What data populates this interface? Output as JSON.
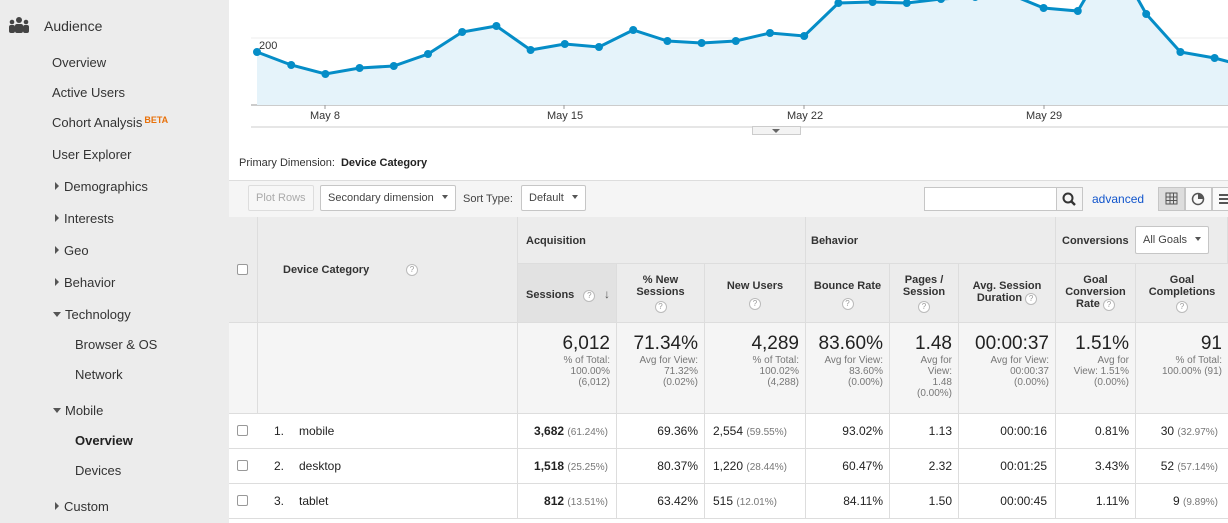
{
  "sidebar": {
    "title": "Audience",
    "icon": "audience-icon",
    "items": [
      {
        "label": "Overview"
      },
      {
        "label": "Active Users"
      },
      {
        "label": "Cohort Analysis",
        "badge": "BETA"
      },
      {
        "label": "User Explorer"
      },
      {
        "label": "Demographics"
      },
      {
        "label": "Interests"
      },
      {
        "label": "Geo"
      },
      {
        "label": "Behavior"
      },
      {
        "label": "Technology"
      },
      {
        "label": "Browser & OS"
      },
      {
        "label": "Network"
      },
      {
        "label": "Mobile"
      },
      {
        "label": "Overview"
      },
      {
        "label": "Devices"
      },
      {
        "label": "Custom"
      }
    ]
  },
  "chart_data": {
    "type": "area",
    "ytick": "200",
    "xticks": [
      "May 8",
      "May 15",
      "May 22",
      "May 29"
    ],
    "color": "#058dc7",
    "fill": "#e5f3fa",
    "values": [
      200,
      187,
      178,
      184,
      186,
      198,
      220,
      226,
      202,
      208,
      205,
      222,
      211,
      209,
      211,
      219,
      216,
      249,
      250,
      249,
      253,
      255,
      258,
      244,
      241,
      299,
      238,
      200,
      194,
      185
    ]
  },
  "primary_dimension": {
    "label": "Primary Dimension:",
    "value": "Device Category"
  },
  "toolbar": {
    "plot_rows": "Plot Rows",
    "secondary_dimension": "Secondary dimension",
    "sort_type_label": "Sort Type:",
    "sort_type_value": "Default",
    "search_placeholder": "",
    "advanced": "advanced"
  },
  "table": {
    "dimension_header": "Device Category",
    "groups": {
      "acquisition": "Acquisition",
      "behavior": "Behavior",
      "conversions": "Conversions",
      "goals_select": "All Goals"
    },
    "columns": [
      "Sessions",
      "% New Sessions",
      "New Users",
      "Bounce Rate",
      "Pages / Session",
      "Avg. Session Duration",
      "Goal Conversion Rate",
      "Goal Completions"
    ],
    "totals": [
      {
        "big": "6,012",
        "sub": [
          "% of Total:",
          "100.00%",
          "(6,012)"
        ]
      },
      {
        "big": "71.34%",
        "sub": [
          "Avg for View:",
          "71.32%",
          "(0.02%)"
        ]
      },
      {
        "big": "4,289",
        "sub": [
          "% of Total:",
          "100.02%",
          "(4,288)"
        ]
      },
      {
        "big": "83.60%",
        "sub": [
          "Avg for View:",
          "83.60%",
          "(0.00%)"
        ]
      },
      {
        "big": "1.48",
        "sub": [
          "Avg for",
          "View:",
          "1.48",
          "(0.00%)"
        ]
      },
      {
        "big": "00:00:37",
        "sub": [
          "Avg for View:",
          "00:00:37",
          "(0.00%)"
        ]
      },
      {
        "big": "1.51%",
        "sub": [
          "Avg for",
          "View: 1.51%",
          "(0.00%)"
        ]
      },
      {
        "big": "91",
        "sub": [
          "% of Total:",
          "100.00% (91)"
        ]
      }
    ],
    "rows": [
      {
        "idx": "1.",
        "name": "mobile",
        "sessions": "3,682",
        "sessions_pct": "(61.24%)",
        "new_sessions": "69.36%",
        "new_users": "2,554",
        "new_users_pct": "(59.55%)",
        "bounce": "93.02%",
        "pages": "1.13",
        "duration": "00:00:16",
        "conv": "0.81%",
        "completions": "30",
        "completions_pct": "(32.97%)"
      },
      {
        "idx": "2.",
        "name": "desktop",
        "sessions": "1,518",
        "sessions_pct": "(25.25%)",
        "new_sessions": "80.37%",
        "new_users": "1,220",
        "new_users_pct": "(28.44%)",
        "bounce": "60.47%",
        "pages": "2.32",
        "duration": "00:01:25",
        "conv": "3.43%",
        "completions": "52",
        "completions_pct": "(57.14%)"
      },
      {
        "idx": "3.",
        "name": "tablet",
        "sessions": "812",
        "sessions_pct": "(13.51%)",
        "new_sessions": "63.42%",
        "new_users": "515",
        "new_users_pct": "(12.01%)",
        "bounce": "84.11%",
        "pages": "1.50",
        "duration": "00:00:45",
        "conv": "1.11%",
        "completions": "9",
        "completions_pct": "(9.89%)"
      }
    ]
  }
}
